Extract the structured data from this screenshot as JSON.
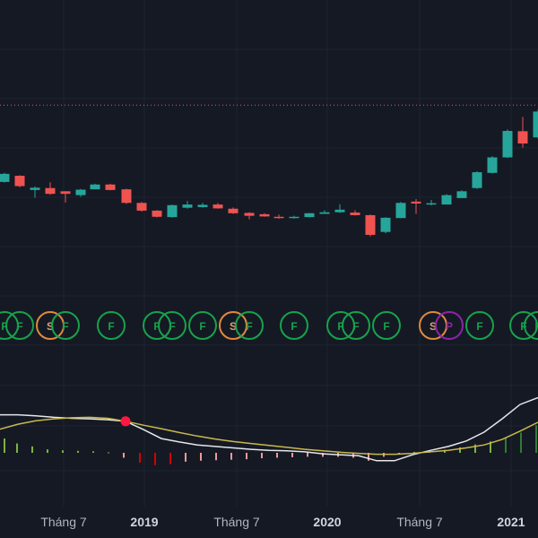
{
  "colors": {
    "background": "#151924",
    "grid": "#1f2431",
    "up": "#26a69a",
    "down": "#ef5350",
    "price_line": "#f7525f",
    "macd_line": "#e6e6ea",
    "signal_line": "#c9b84a",
    "hist_up": "#7cb342",
    "hist_up_strong": "#2e7d32",
    "hist_down": "#ef9a9a",
    "hist_down_strong": "#d50000",
    "marker": "#ff1744",
    "sig_F": "#16a34a",
    "sig_S": "#e08a3c",
    "sig_P": "#8e24aa"
  },
  "chart_data": [
    {
      "type": "candlestick",
      "title": "",
      "x_tick_labels": [
        {
          "x": 84,
          "label": "Tháng 7",
          "year": false
        },
        {
          "x": 174,
          "label": "2019",
          "year": true
        },
        {
          "x": 277,
          "label": "Tháng 7",
          "year": false
        },
        {
          "x": 378,
          "label": "2020",
          "year": true
        },
        {
          "x": 481,
          "label": "Tháng 7",
          "year": false
        },
        {
          "x": 583,
          "label": "2021",
          "year": true
        }
      ],
      "y_range": [
        0,
        1000
      ],
      "price_line_level": 730,
      "candles": [
        {
          "x": 5,
          "o": 492,
          "c": 517,
          "h": 520,
          "l": 490
        },
        {
          "x": 22,
          "o": 511,
          "c": 479,
          "h": 513,
          "l": 475
        },
        {
          "x": 39,
          "o": 467,
          "c": 474,
          "h": 478,
          "l": 443
        },
        {
          "x": 56,
          "o": 473,
          "c": 455,
          "h": 491,
          "l": 452
        },
        {
          "x": 73,
          "o": 463,
          "c": 455,
          "h": 463,
          "l": 428
        },
        {
          "x": 90,
          "o": 451,
          "c": 468,
          "h": 470,
          "l": 446
        },
        {
          "x": 106,
          "o": 469,
          "c": 484,
          "h": 486,
          "l": 469
        },
        {
          "x": 123,
          "o": 484,
          "c": 467,
          "h": 486,
          "l": 466
        },
        {
          "x": 141,
          "o": 469,
          "c": 427,
          "h": 471,
          "l": 424
        },
        {
          "x": 158,
          "o": 427,
          "c": 403,
          "h": 430,
          "l": 400
        },
        {
          "x": 175,
          "o": 403,
          "c": 384,
          "h": 405,
          "l": 382
        },
        {
          "x": 192,
          "o": 383,
          "c": 420,
          "h": 422,
          "l": 381
        },
        {
          "x": 209,
          "o": 412,
          "c": 422,
          "h": 433,
          "l": 409
        },
        {
          "x": 226,
          "o": 414,
          "c": 421,
          "h": 427,
          "l": 412
        },
        {
          "x": 243,
          "o": 422,
          "c": 410,
          "h": 427,
          "l": 409
        },
        {
          "x": 260,
          "o": 409,
          "c": 395,
          "h": 413,
          "l": 393
        },
        {
          "x": 278,
          "o": 396,
          "c": 387,
          "h": 398,
          "l": 376
        },
        {
          "x": 295,
          "o": 392,
          "c": 385,
          "h": 395,
          "l": 384
        },
        {
          "x": 311,
          "o": 384,
          "c": 380,
          "h": 391,
          "l": 378
        },
        {
          "x": 328,
          "o": 380,
          "c": 384,
          "h": 387,
          "l": 378
        },
        {
          "x": 345,
          "o": 383,
          "c": 395,
          "h": 396,
          "l": 382
        },
        {
          "x": 362,
          "o": 393,
          "c": 398,
          "h": 404,
          "l": 393
        },
        {
          "x": 379,
          "o": 398,
          "c": 406,
          "h": 423,
          "l": 396
        },
        {
          "x": 396,
          "o": 397,
          "c": 389,
          "h": 404,
          "l": 388
        },
        {
          "x": 413,
          "o": 389,
          "c": 328,
          "h": 391,
          "l": 323
        },
        {
          "x": 430,
          "o": 337,
          "c": 381,
          "h": 383,
          "l": 333
        },
        {
          "x": 447,
          "o": 380,
          "c": 427,
          "h": 430,
          "l": 380
        },
        {
          "x": 464,
          "o": 431,
          "c": 425,
          "h": 439,
          "l": 393
        },
        {
          "x": 481,
          "o": 422,
          "c": 426,
          "h": 436,
          "l": 419
        },
        {
          "x": 498,
          "o": 422,
          "c": 451,
          "h": 454,
          "l": 422
        },
        {
          "x": 515,
          "o": 442,
          "c": 463,
          "h": 466,
          "l": 442
        },
        {
          "x": 532,
          "o": 473,
          "c": 522,
          "h": 525,
          "l": 470
        },
        {
          "x": 549,
          "o": 520,
          "c": 568,
          "h": 572,
          "l": 518
        },
        {
          "x": 566,
          "o": 568,
          "c": 650,
          "h": 655,
          "l": 566
        },
        {
          "x": 583,
          "o": 649,
          "c": 611,
          "h": 693,
          "l": 598
        },
        {
          "x": 600,
          "o": 630,
          "c": 710,
          "h": 716,
          "l": 626
        }
      ]
    },
    {
      "type": "scatter",
      "title": "",
      "markers": [
        {
          "x": 5,
          "label": "F"
        },
        {
          "x": 22,
          "label": "F"
        },
        {
          "x": 56,
          "label": "S"
        },
        {
          "x": 73,
          "label": "F"
        },
        {
          "x": 124,
          "label": "F"
        },
        {
          "x": 175,
          "label": "F"
        },
        {
          "x": 192,
          "label": "F"
        },
        {
          "x": 226,
          "label": "F"
        },
        {
          "x": 260,
          "label": "S"
        },
        {
          "x": 278,
          "label": "F"
        },
        {
          "x": 328,
          "label": "F"
        },
        {
          "x": 380,
          "label": "F"
        },
        {
          "x": 397,
          "label": "F"
        },
        {
          "x": 431,
          "label": "F"
        },
        {
          "x": 483,
          "label": "S"
        },
        {
          "x": 501,
          "label": "P"
        },
        {
          "x": 535,
          "label": "F"
        },
        {
          "x": 584,
          "label": "F"
        },
        {
          "x": 600,
          "label": "F"
        }
      ]
    },
    {
      "type": "line",
      "title": "",
      "y_range": [
        -100,
        100
      ],
      "series": [
        {
          "key": "macd",
          "points": [
            [
              0,
              77
            ],
            [
              20,
              77
            ],
            [
              40,
              75
            ],
            [
              60,
              72
            ],
            [
              80,
              70
            ],
            [
              100,
              69
            ],
            [
              120,
              67
            ],
            [
              140,
              64
            ],
            [
              160,
              47
            ],
            [
              180,
              29
            ],
            [
              200,
              22
            ],
            [
              220,
              16
            ],
            [
              240,
              13
            ],
            [
              260,
              10
            ],
            [
              280,
              7
            ],
            [
              300,
              5
            ],
            [
              320,
              4
            ],
            [
              340,
              2
            ],
            [
              360,
              -2
            ],
            [
              380,
              -4
            ],
            [
              400,
              -6
            ],
            [
              420,
              -16
            ],
            [
              440,
              -16
            ],
            [
              460,
              -4
            ],
            [
              480,
              5
            ],
            [
              500,
              13
            ],
            [
              520,
              24
            ],
            [
              540,
              42
            ],
            [
              560,
              69
            ],
            [
              580,
              98
            ],
            [
              600,
              112
            ]
          ]
        },
        {
          "key": "signal",
          "points": [
            [
              0,
              48
            ],
            [
              20,
              58
            ],
            [
              40,
              65
            ],
            [
              60,
              69
            ],
            [
              80,
              71
            ],
            [
              100,
              72
            ],
            [
              120,
              70
            ],
            [
              140,
              64
            ],
            [
              160,
              56
            ],
            [
              180,
              49
            ],
            [
              200,
              41
            ],
            [
              220,
              34
            ],
            [
              240,
              28
            ],
            [
              260,
              23
            ],
            [
              280,
              19
            ],
            [
              300,
              15
            ],
            [
              320,
              11
            ],
            [
              340,
              7
            ],
            [
              360,
              4
            ],
            [
              380,
              1
            ],
            [
              400,
              -1
            ],
            [
              420,
              -3
            ],
            [
              440,
              -3
            ],
            [
              460,
              -1
            ],
            [
              480,
              2
            ],
            [
              500,
              5
            ],
            [
              520,
              10
            ],
            [
              540,
              16
            ],
            [
              560,
              27
            ],
            [
              580,
              44
            ],
            [
              600,
              62
            ]
          ]
        }
      ],
      "histogram": [
        {
          "x": 5,
          "v": 29
        },
        {
          "x": 19,
          "v": 19
        },
        {
          "x": 36,
          "v": 13
        },
        {
          "x": 53,
          "v": 7
        },
        {
          "x": 70,
          "v": 5
        },
        {
          "x": 87,
          "v": 4
        },
        {
          "x": 104,
          "v": 3
        },
        {
          "x": 121,
          "v": 1
        },
        {
          "x": 138,
          "v": -10
        },
        {
          "x": 156,
          "v": -20
        },
        {
          "x": 173,
          "v": -25
        },
        {
          "x": 190,
          "v": -23
        },
        {
          "x": 207,
          "v": -18
        },
        {
          "x": 224,
          "v": -16
        },
        {
          "x": 241,
          "v": -15
        },
        {
          "x": 258,
          "v": -14
        },
        {
          "x": 275,
          "v": -13
        },
        {
          "x": 292,
          "v": -11
        },
        {
          "x": 309,
          "v": -10
        },
        {
          "x": 326,
          "v": -9
        },
        {
          "x": 343,
          "v": -8
        },
        {
          "x": 360,
          "v": -8
        },
        {
          "x": 377,
          "v": -8
        },
        {
          "x": 394,
          "v": -10
        },
        {
          "x": 411,
          "v": -16
        },
        {
          "x": 428,
          "v": -8
        },
        {
          "x": 445,
          "v": -3
        },
        {
          "x": 462,
          "v": 2
        },
        {
          "x": 479,
          "v": 3
        },
        {
          "x": 496,
          "v": 6
        },
        {
          "x": 513,
          "v": 11
        },
        {
          "x": 530,
          "v": 17
        },
        {
          "x": 547,
          "v": 23
        },
        {
          "x": 564,
          "v": 31
        },
        {
          "x": 581,
          "v": 41
        },
        {
          "x": 598,
          "v": 56
        }
      ],
      "cross_marker": {
        "x": 140,
        "v": 64
      }
    }
  ]
}
